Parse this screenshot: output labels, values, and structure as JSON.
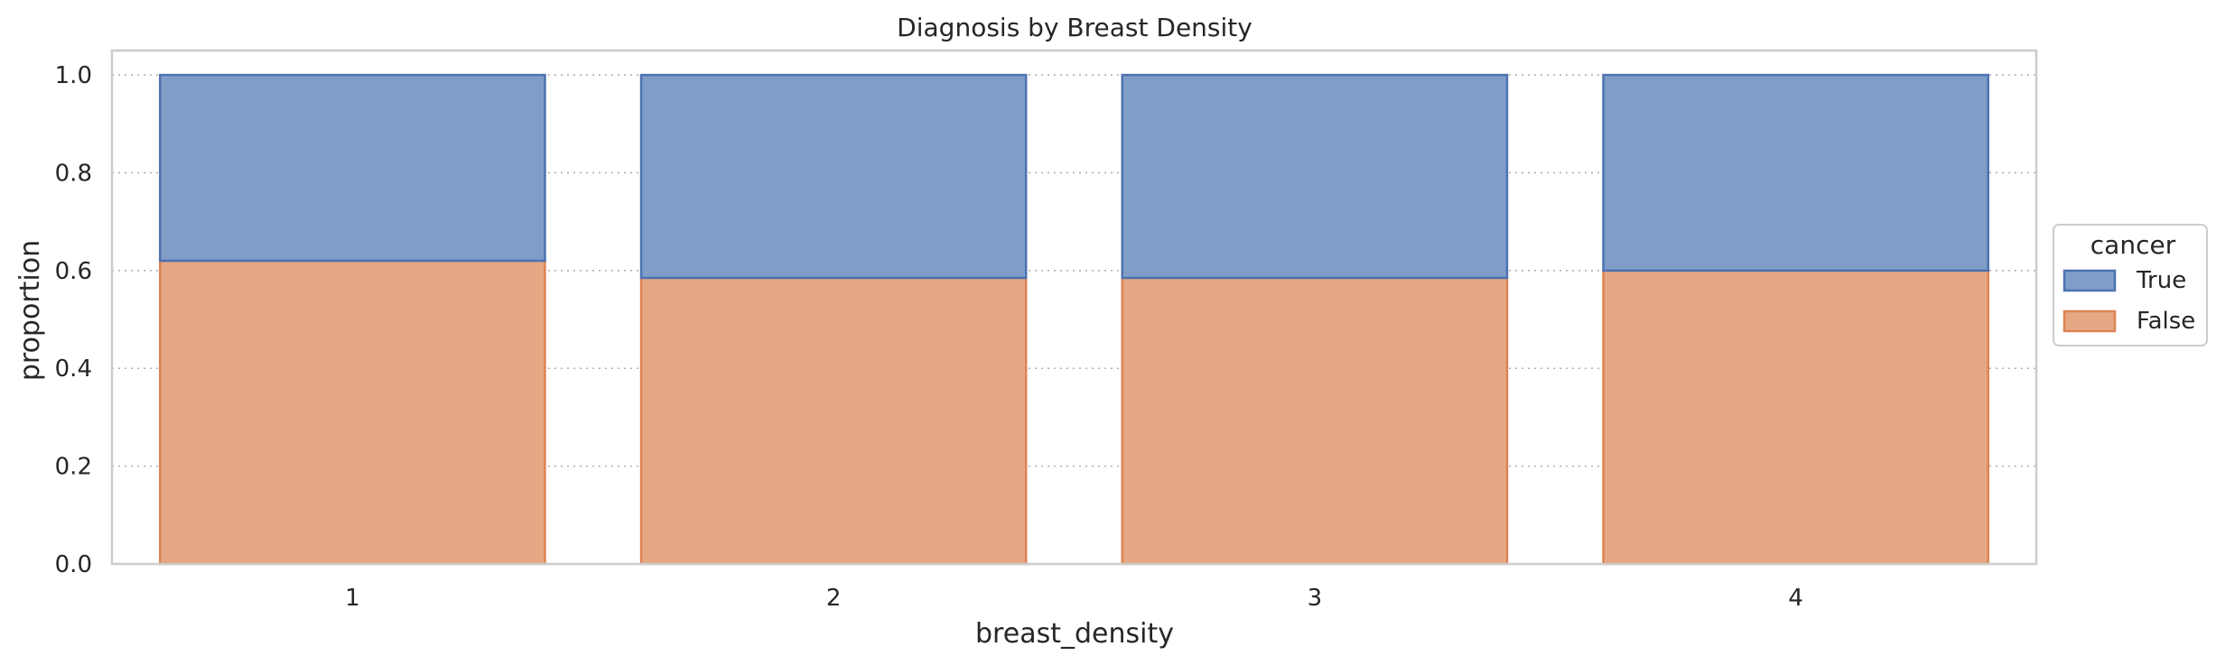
{
  "chart_data": {
    "type": "bar",
    "stacked": true,
    "title": "Diagnosis by Breast Density",
    "xlabel": "breast_density",
    "ylabel": "proportion",
    "categories": [
      "1",
      "2",
      "3",
      "4"
    ],
    "ylim": [
      0,
      1.05
    ],
    "yticks": [
      "0.0",
      "0.2",
      "0.4",
      "0.6",
      "0.8",
      "1.0"
    ],
    "grid": true,
    "legend": {
      "title": "cancer",
      "placement": "center-right outside"
    },
    "series": [
      {
        "name": "False",
        "values": [
          0.62,
          0.585,
          0.585,
          0.6
        ],
        "fill": "#e6a785",
        "stroke": "#dd8452"
      },
      {
        "name": "True",
        "values": [
          0.38,
          0.415,
          0.415,
          0.4
        ],
        "fill": "#809dc8",
        "stroke": "#4c72b0"
      }
    ]
  }
}
